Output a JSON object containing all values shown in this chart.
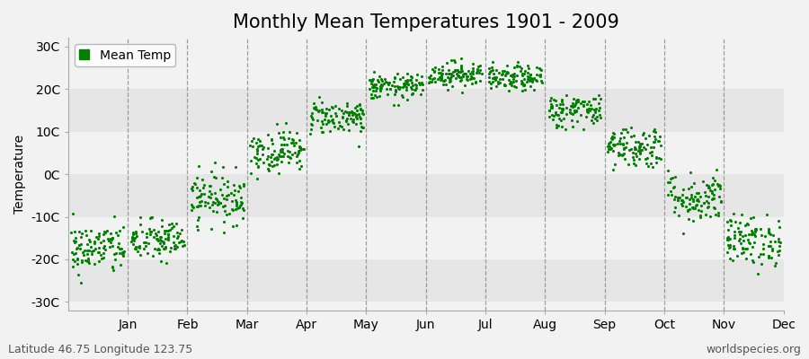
{
  "title": "Monthly Mean Temperatures 1901 - 2009",
  "ylabel": "Temperature",
  "xlabel_months": [
    "Jan",
    "Feb",
    "Mar",
    "Apr",
    "May",
    "Jun",
    "Jul",
    "Aug",
    "Sep",
    "Oct",
    "Nov",
    "Dec"
  ],
  "ytick_labels": [
    "30C",
    "20C",
    "10C",
    "0C",
    "-10C",
    "-20C",
    "-30C"
  ],
  "ytick_values": [
    30,
    20,
    10,
    0,
    -10,
    -20,
    -30
  ],
  "ylim": [
    -32,
    32
  ],
  "legend_label": "Mean Temp",
  "dot_color": "#008000",
  "dot_size": 5,
  "bg_light": "#f2f2f2",
  "bg_dark": "#e6e6e6",
  "footer_left": "Latitude 46.75 Longitude 123.75",
  "footer_right": "worldspecies.org",
  "monthly_mean_temps": [
    -17.5,
    -15.5,
    -5.5,
    5.5,
    13.5,
    20.5,
    23.5,
    22.5,
    15.0,
    6.5,
    -5.5,
    -15.5
  ],
  "monthly_spread": [
    3.0,
    2.5,
    3.0,
    2.5,
    2.0,
    1.5,
    1.5,
    1.5,
    2.0,
    2.5,
    3.0,
    3.0
  ],
  "num_years": 109,
  "title_fontsize": 15,
  "axis_fontsize": 10,
  "footer_fontsize": 9,
  "vline_color": "#888888",
  "xlim_left": 0,
  "xlim_right": 12
}
